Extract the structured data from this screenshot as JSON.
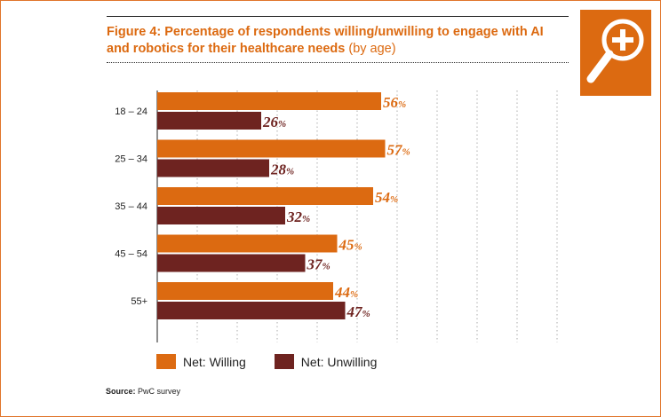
{
  "figure": {
    "title_bold": "Figure 4: Percentage of respondents willing/unwilling to engage with AI and robotics for their healthcare needs",
    "title_suffix": "(by age)",
    "source_label": "Source:",
    "source_text": "PwC survey"
  },
  "zoom_button": {
    "icon": "magnify-plus-icon"
  },
  "colors": {
    "willing": "#dc6a11",
    "unwilling": "#6e2320",
    "accent": "#dc6a11"
  },
  "chart_data": {
    "type": "bar",
    "orientation": "horizontal",
    "categories": [
      "18 – 24",
      "25 – 34",
      "35 – 44",
      "45 – 54",
      "55+"
    ],
    "series": [
      {
        "name": "Net: Willing",
        "values": [
          56,
          57,
          54,
          45,
          44
        ]
      },
      {
        "name": "Net: Unwilling",
        "values": [
          26,
          28,
          32,
          37,
          47
        ]
      }
    ],
    "value_suffix": "%",
    "xlim": [
      0,
      100
    ],
    "grid": true,
    "legend": "bottom-left"
  }
}
